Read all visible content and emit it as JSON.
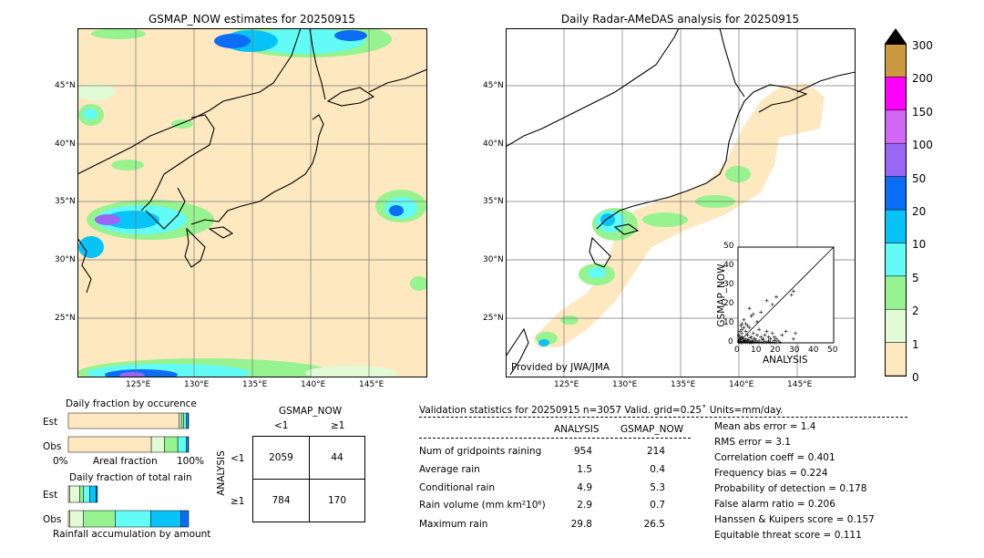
{
  "colors": {
    "c0": "#fde8bf",
    "c1": "#e2fbd7",
    "c2": "#96f38f",
    "c5": "#63fbf5",
    "c10": "#08c3f8",
    "c20": "#0b6cf6",
    "c50": "#9966f5",
    "c100": "#d266f5",
    "c150": "#ff00ff",
    "c200": "#cc9940"
  },
  "left_map": {
    "title": "GSMAP_NOW estimates for 20250915",
    "lon_labels": [
      "125°E",
      "130°E",
      "135°E",
      "140°E",
      "145°E"
    ],
    "lat_labels": [
      "45°N",
      "40°N",
      "35°N",
      "30°N",
      "25°N"
    ]
  },
  "right_map": {
    "title": "Daily Radar-AMeDAS analysis for 20250915",
    "lon_labels": [
      "125°E",
      "130°E",
      "135°E",
      "140°E",
      "145°E"
    ],
    "lat_labels": [
      "45°N",
      "40°N",
      "35°N",
      "30°N",
      "25°N"
    ],
    "credit": "Provided by JWA/JMA"
  },
  "chart_data": [
    {
      "type": "heatmap",
      "name": "colorbar",
      "levels": [
        "0",
        "1",
        "2",
        "5",
        "10",
        "20",
        "50",
        "100",
        "150",
        "200",
        "300"
      ]
    },
    {
      "type": "scatter",
      "name": "inset-scatter",
      "xlabel": "ANALYSIS",
      "ylabel": "GSMAP_NOW",
      "xlim": [
        0,
        50
      ],
      "ylim": [
        0,
        50
      ],
      "xticks": [
        "0",
        "10",
        "20",
        "30",
        "40",
        "50"
      ],
      "yticks": [
        "0",
        "10",
        "20",
        "30",
        "40",
        "50"
      ],
      "points": [
        [
          0.5,
          0.2
        ],
        [
          1,
          0.5
        ],
        [
          1.5,
          0.3
        ],
        [
          2,
          0.1
        ],
        [
          2.5,
          0.8
        ],
        [
          3,
          0.4
        ],
        [
          3.5,
          1.2
        ],
        [
          4,
          0.2
        ],
        [
          4.5,
          0.6
        ],
        [
          5,
          0.3
        ],
        [
          5.5,
          1
        ],
        [
          6,
          0.2
        ],
        [
          6.5,
          0.4
        ],
        [
          7,
          0.1
        ],
        [
          7.5,
          0.5
        ],
        [
          8,
          0.3
        ],
        [
          9,
          0.2
        ],
        [
          10,
          0.4
        ],
        [
          11,
          0.1
        ],
        [
          12,
          0.3
        ],
        [
          13,
          0.2
        ],
        [
          14,
          0.5
        ],
        [
          15,
          0.2
        ],
        [
          16,
          0.4
        ],
        [
          17,
          0.1
        ],
        [
          18,
          0.3
        ],
        [
          19,
          0.2
        ],
        [
          20,
          0.1
        ],
        [
          22,
          0.3
        ],
        [
          1,
          3
        ],
        [
          2,
          5
        ],
        [
          3,
          2
        ],
        [
          4,
          6
        ],
        [
          5,
          4
        ],
        [
          6,
          8
        ],
        [
          7,
          3
        ],
        [
          8,
          5
        ],
        [
          9,
          2
        ],
        [
          10,
          4
        ],
        [
          11,
          7
        ],
        [
          12,
          3
        ],
        [
          13,
          2
        ],
        [
          14,
          4
        ],
        [
          15,
          6
        ],
        [
          16,
          3
        ],
        [
          17,
          2
        ],
        [
          18,
          5
        ],
        [
          19,
          3
        ],
        [
          20,
          2
        ],
        [
          2,
          10
        ],
        [
          3,
          12
        ],
        [
          5,
          9
        ],
        [
          7,
          14
        ],
        [
          8,
          15
        ],
        [
          10,
          11
        ],
        [
          12,
          16
        ],
        [
          6,
          18
        ],
        [
          15,
          22
        ],
        [
          18,
          20
        ],
        [
          20,
          24
        ],
        [
          28,
          25
        ],
        [
          29,
          27
        ],
        [
          23,
          4
        ],
        [
          25,
          6
        ],
        [
          29,
          2
        ],
        [
          30,
          5
        ],
        [
          0.3,
          1
        ],
        [
          0.8,
          2
        ],
        [
          1.2,
          1.5
        ],
        [
          1.8,
          2.5
        ],
        [
          2.2,
          3
        ],
        [
          3.2,
          1
        ],
        [
          4.2,
          2
        ],
        [
          5.2,
          1.5
        ],
        [
          6.2,
          2.5
        ],
        [
          7.2,
          1
        ],
        [
          8.2,
          2
        ],
        [
          9.2,
          1
        ],
        [
          3,
          8
        ],
        [
          1,
          6
        ],
        [
          4,
          10
        ],
        [
          2,
          7
        ],
        [
          0.5,
          4
        ],
        [
          1.5,
          9
        ],
        [
          11,
          1
        ],
        [
          13,
          1.5
        ],
        [
          16,
          1
        ],
        [
          19,
          1.2
        ],
        [
          21,
          1
        ]
      ]
    },
    {
      "type": "bar",
      "name": "fraction-by-occurrence",
      "title": "Daily fraction by occurence",
      "categories": [
        "Est",
        "Obs"
      ],
      "segments": [
        "0",
        "1",
        "2",
        "5",
        "10",
        "20"
      ],
      "values": [
        [
          92,
          2,
          2,
          2,
          1.5,
          0.5
        ],
        [
          69,
          11,
          11,
          7,
          1.5,
          0.5
        ]
      ],
      "xlabel": "Areal fraction",
      "xticks": [
        "0%",
        "100%"
      ]
    },
    {
      "type": "bar",
      "name": "fraction-of-total-rain",
      "title": "Daily fraction of total rain",
      "categories": [
        "Est",
        "Obs"
      ],
      "segments": [
        "0",
        "1",
        "2",
        "5",
        "10",
        "20"
      ],
      "values": [
        [
          1,
          8,
          3,
          5,
          5,
          1
        ],
        [
          1,
          11,
          25,
          28,
          24,
          6
        ]
      ],
      "xlabel": "Rainfall accumulation by amount"
    }
  ],
  "contingency": {
    "top_label": "GSMAP_NOW",
    "col_labels": [
      "<1",
      "≥1"
    ],
    "side_label": "ANALYSIS",
    "row_labels": [
      "<1",
      "≥1"
    ],
    "cells": [
      "2059",
      "44",
      "784",
      "170"
    ]
  },
  "validation": {
    "header": "Validation statistics for 20250915  n=3057 Valid. grid=0.25˚ Units=mm/day.",
    "col_analysis": "ANALYSIS",
    "col_gsmap": "GSMAP_NOW",
    "rows": [
      {
        "label": "Num of gridpoints raining",
        "a": "954",
        "g": "214"
      },
      {
        "label": "Average rain",
        "a": "1.5",
        "g": "0.4"
      },
      {
        "label": "Conditional rain",
        "a": "4.9",
        "g": "5.3"
      },
      {
        "label": "Rain volume (mm km²10⁶)",
        "a": "2.9",
        "g": "0.7"
      },
      {
        "label": "Maximum rain",
        "a": "29.8",
        "g": "26.5"
      }
    ],
    "scores": [
      "Mean abs error =    1.4",
      "RMS error =    3.1",
      "Correlation coeff =  0.401",
      "Frequency bias =  0.224",
      "Probability of detection =  0.178",
      "False alarm ratio =  0.206",
      "Hanssen & Kuipers score =  0.157",
      "Equitable threat score =  0.111"
    ]
  }
}
